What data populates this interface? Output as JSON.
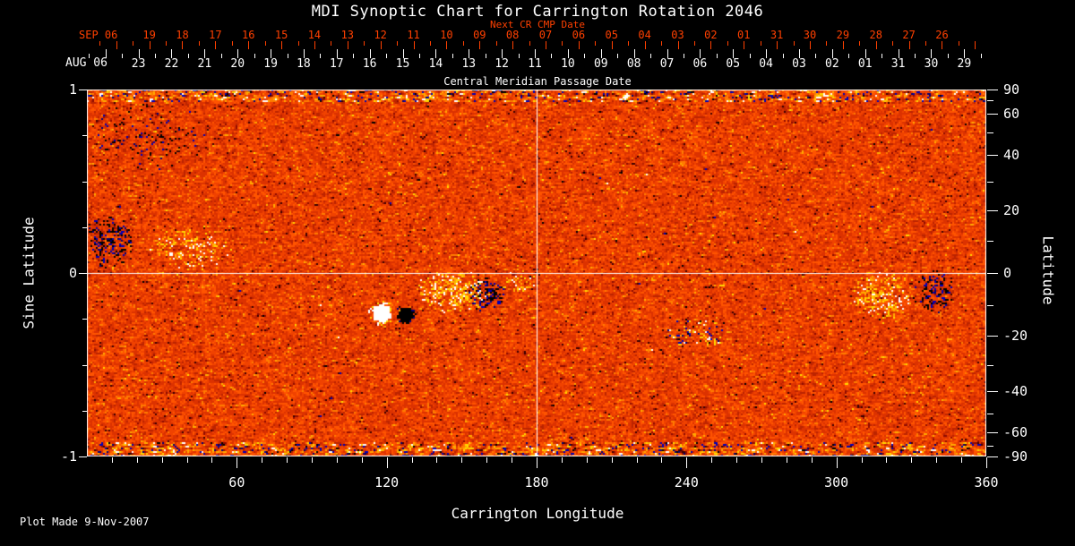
{
  "title": "MDI Synoptic Chart for Carrington Rotation 2046",
  "caption": "Plot Made  9-Nov-2007",
  "colors": {
    "background": "#000000",
    "foreground": "#ffffff",
    "secondary_axis_red": "#ff4000"
  },
  "axes": {
    "top_red": {
      "title": "Next CR CMP Date",
      "month_label": "SEP 06",
      "day_labels": [
        "19",
        "18",
        "17",
        "16",
        "15",
        "14",
        "13",
        "12",
        "11",
        "10",
        "09",
        "08",
        "07",
        "06",
        "05",
        "04",
        "03",
        "02",
        "01",
        "31",
        "30",
        "29",
        "28",
        "27",
        "26"
      ]
    },
    "top_white": {
      "title": "Central Meridian Passage Date",
      "month_label": "AUG 06",
      "day_labels": [
        "23",
        "22",
        "21",
        "20",
        "19",
        "18",
        "17",
        "16",
        "15",
        "14",
        "13",
        "12",
        "11",
        "10",
        "09",
        "08",
        "07",
        "06",
        "05",
        "04",
        "03",
        "02",
        "01",
        "31",
        "30",
        "29"
      ]
    },
    "left": {
      "title": "Sine Latitude",
      "major_ticks": [
        "1",
        "0",
        "-1"
      ],
      "major_values": [
        1,
        0,
        -1
      ],
      "minor_values": [
        0.75,
        0.5,
        0.25,
        -0.25,
        -0.5,
        -0.75
      ]
    },
    "right": {
      "title": "Latitude",
      "major_ticks": [
        "90",
        "60",
        "40",
        "20",
        "0",
        "-20",
        "-40",
        "-60",
        "-90"
      ],
      "major_values": [
        90,
        60,
        40,
        20,
        0,
        -20,
        -40,
        -60,
        -90
      ],
      "minor_values": [
        70,
        50,
        30,
        10,
        -10,
        -30,
        -50,
        -70
      ]
    },
    "bottom": {
      "title": "Carrington Longitude",
      "major_ticks": [
        "60",
        "120",
        "180",
        "240",
        "300",
        "360"
      ],
      "major_values": [
        60,
        120,
        180,
        240,
        300,
        360
      ],
      "minor_step_deg": 10,
      "range": [
        0,
        360
      ]
    }
  },
  "chart_data": {
    "type": "heatmap",
    "title": "MDI Synoptic Chart for Carrington Rotation 2046",
    "xlabel": "Carrington Longitude",
    "ylabel_left": "Sine Latitude",
    "ylabel_right": "Latitude",
    "xlim": [
      0,
      360
    ],
    "ylim_sine_latitude": [
      -1,
      1
    ],
    "colormap": "MDI magnetogram orange: strong negative field = black/navy, quiet sun = red-orange noise, strong positive field = yellow/white",
    "crosshairs": {
      "equator_sine_latitude": 0,
      "meridian_longitude_deg": 180
    },
    "noise_seed": 20466,
    "palette_stops": [
      [
        0.05,
        "#000078"
      ],
      [
        0.095,
        "#0000b8"
      ],
      [
        0.14,
        "#000000"
      ],
      [
        0.2,
        "#3c0000"
      ],
      [
        0.28,
        "#900c00"
      ],
      [
        0.38,
        "#bc2400"
      ],
      [
        0.5,
        "#dc3200"
      ],
      [
        0.6,
        "#f04200"
      ],
      [
        0.7,
        "#ff5400"
      ],
      [
        0.79,
        "#ff7c00"
      ],
      [
        0.87,
        "#ffaa00"
      ],
      [
        0.935,
        "#ffd800"
      ],
      [
        1.1,
        "#ffffff"
      ]
    ],
    "features": [
      {
        "name": "east-limb-negative-cluster",
        "type": "dark-speckle",
        "lon": 9,
        "sinlat": 0.18,
        "rlon": 10,
        "rsinlat": 0.17,
        "density": 0.4
      },
      {
        "name": "east-limb-positive-plage",
        "type": "bright-speckle",
        "lon": 42,
        "sinlat": 0.13,
        "rlon": 18,
        "rsinlat": 0.14,
        "density": 0.22
      },
      {
        "name": "north-east-weak-negative",
        "type": "dark-speckle",
        "lon": 25,
        "sinlat": 0.75,
        "rlon": 25,
        "rsinlat": 0.2,
        "density": 0.1
      },
      {
        "name": "active-region-white-spot",
        "type": "white-spot",
        "lon": 118,
        "sinlat": -0.22,
        "rlon": 5.5,
        "rsinlat": 0.075,
        "density": 1.0
      },
      {
        "name": "active-region-black-spot",
        "type": "black-spot",
        "lon": 127.7,
        "sinlat": -0.23,
        "rlon": 4.5,
        "rsinlat": 0.062,
        "density": 1.0
      },
      {
        "name": "central-positive-plage",
        "type": "bright-speckle",
        "lon": 146.3,
        "sinlat": -0.1,
        "rlon": 16,
        "rsinlat": 0.12,
        "density": 0.5
      },
      {
        "name": "central-negative-patch",
        "type": "dark-speckle",
        "lon": 160.6,
        "sinlat": -0.12,
        "rlon": 8,
        "rsinlat": 0.1,
        "density": 0.5
      },
      {
        "name": "small-positive-patch",
        "type": "bright-speckle",
        "lon": 173,
        "sinlat": -0.05,
        "rlon": 8,
        "rsinlat": 0.07,
        "density": 0.28
      },
      {
        "name": "south-mixed-polarity-region",
        "type": "mixed-speckle",
        "lon": 245,
        "sinlat": -0.33,
        "rlon": 14,
        "rsinlat": 0.09,
        "density": 0.28
      },
      {
        "name": "west-positive-plage",
        "type": "bright-speckle",
        "lon": 318.4,
        "sinlat": -0.12,
        "rlon": 13,
        "rsinlat": 0.14,
        "density": 0.45
      },
      {
        "name": "west-negative-cluster",
        "type": "dark-speckle",
        "lon": 339.2,
        "sinlat": -0.1,
        "rlon": 8,
        "rsinlat": 0.13,
        "density": 0.5
      }
    ]
  }
}
